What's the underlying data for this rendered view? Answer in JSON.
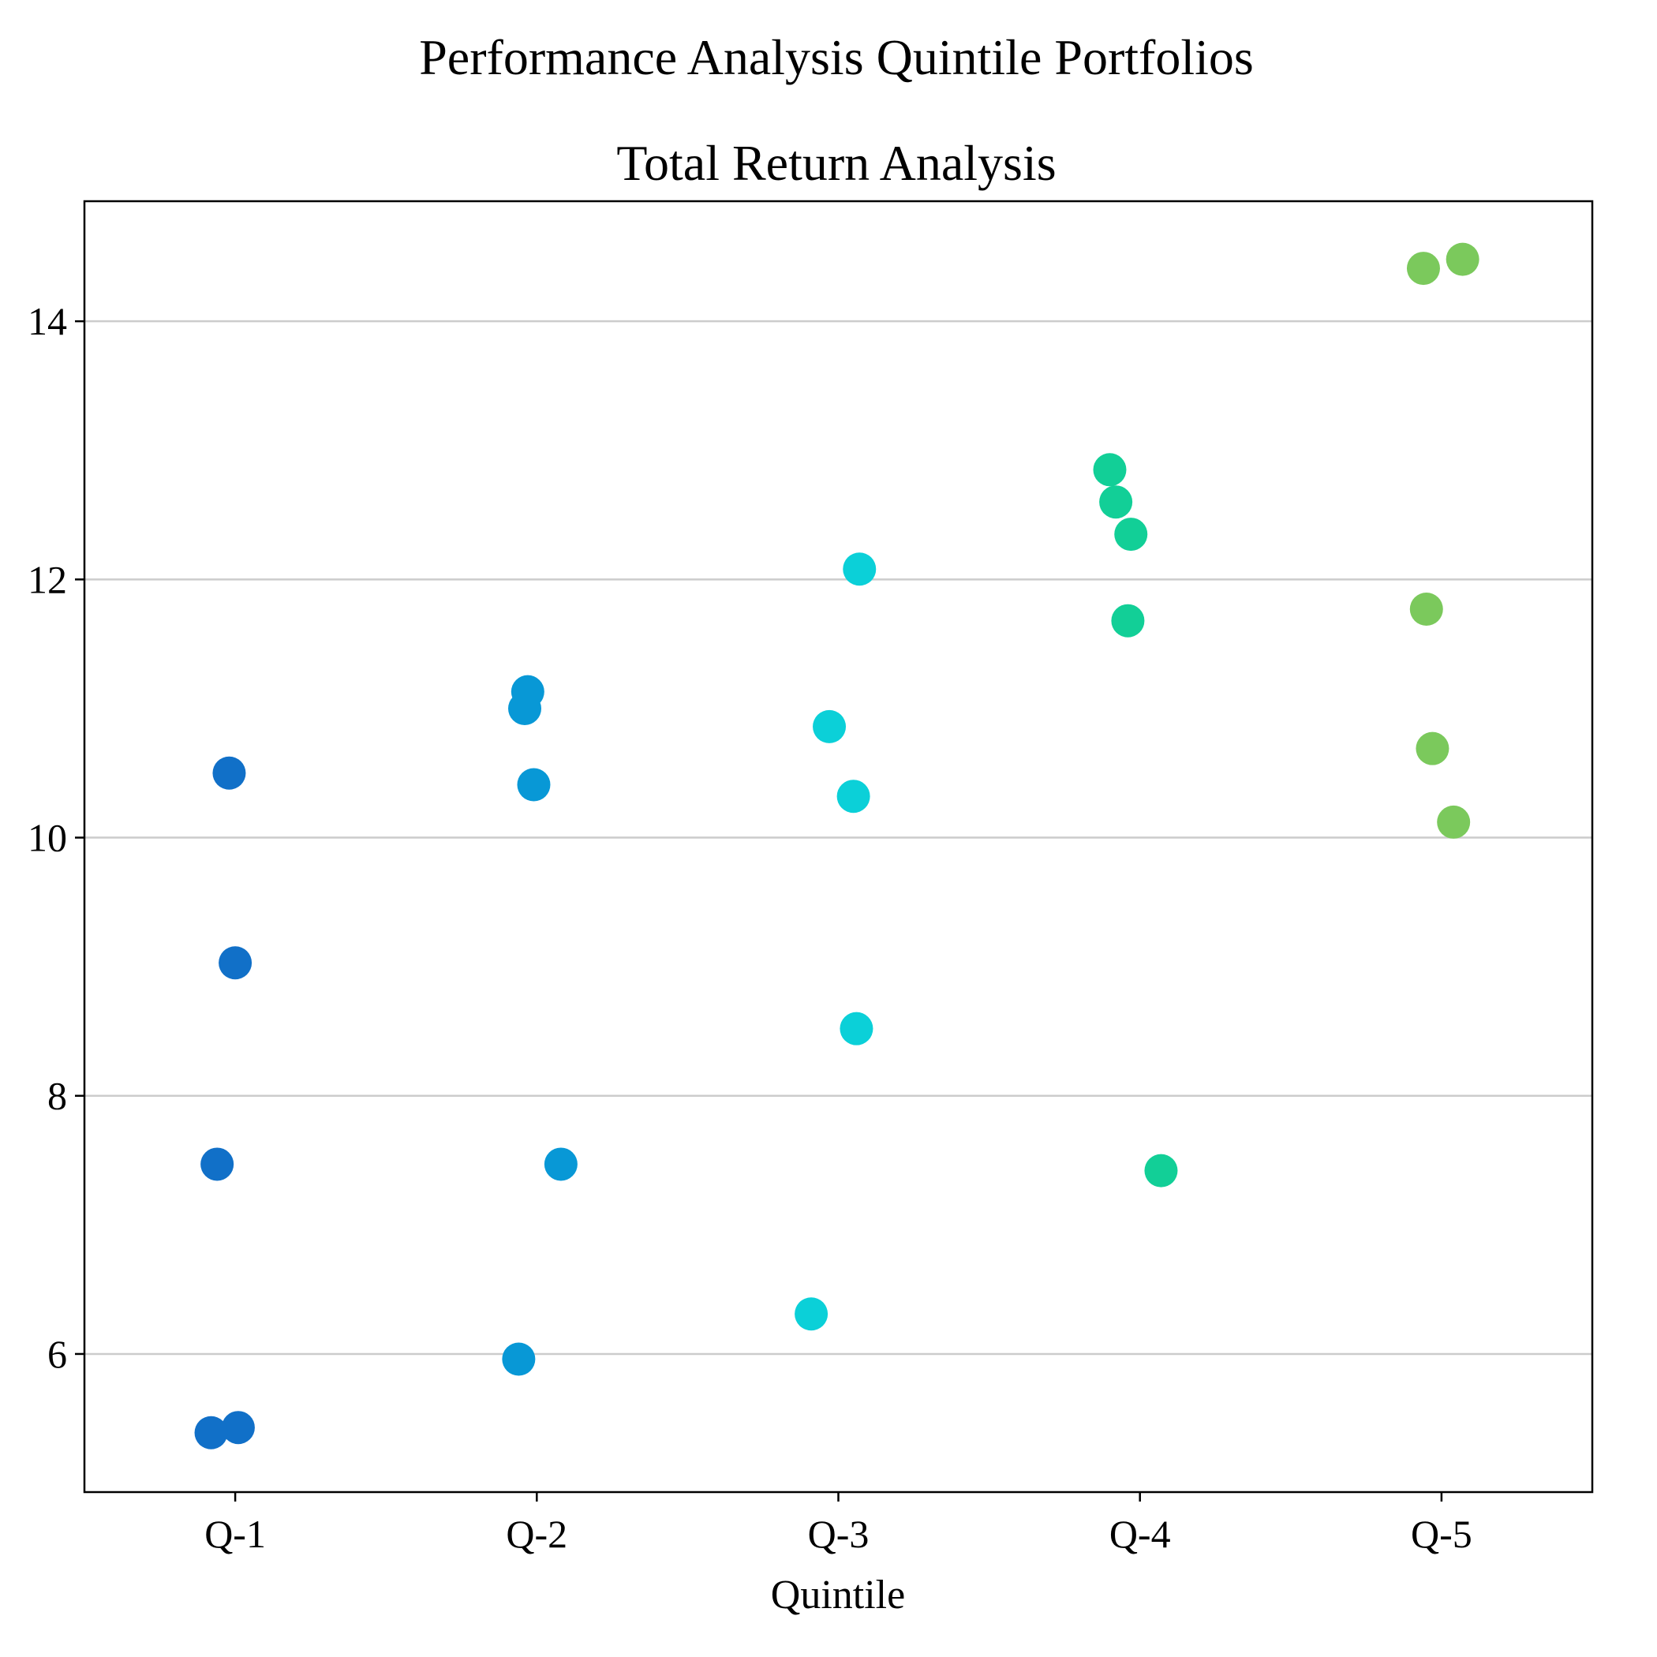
{
  "chart_data": {
    "type": "scatter",
    "title": "Performance Analysis Quintile Portfolios",
    "subtitle": "Total Return Analysis",
    "xlabel": "Quintile",
    "ylabel": "",
    "categories": [
      "Q-1",
      "Q-2",
      "Q-3",
      "Q-4",
      "Q-5"
    ],
    "ylim": [
      4.93,
      14.93
    ],
    "yticks": [
      6,
      8,
      10,
      12,
      14
    ],
    "grid": "horizontal",
    "legend": "none",
    "series": [
      {
        "category": "Q-1",
        "color": "#1170c8",
        "points": [
          {
            "x": -0.02,
            "y": 10.5
          },
          {
            "x": 0.0,
            "y": 9.03
          },
          {
            "x": -0.06,
            "y": 7.47
          },
          {
            "x": 0.01,
            "y": 5.43
          },
          {
            "x": -0.08,
            "y": 5.39
          }
        ]
      },
      {
        "category": "Q-2",
        "color": "#0898d6",
        "points": [
          {
            "x": -0.03,
            "y": 11.13
          },
          {
            "x": -0.04,
            "y": 11.0
          },
          {
            "x": -0.01,
            "y": 10.41
          },
          {
            "x": 0.08,
            "y": 7.47
          },
          {
            "x": -0.06,
            "y": 5.96
          }
        ]
      },
      {
        "category": "Q-3",
        "color": "#0bd0d8",
        "points": [
          {
            "x": 0.07,
            "y": 12.08
          },
          {
            "x": -0.03,
            "y": 10.86
          },
          {
            "x": 0.05,
            "y": 10.32
          },
          {
            "x": 0.06,
            "y": 8.52
          },
          {
            "x": -0.09,
            "y": 6.31
          }
        ]
      },
      {
        "category": "Q-4",
        "color": "#12cf97",
        "points": [
          {
            "x": -0.1,
            "y": 12.85
          },
          {
            "x": -0.08,
            "y": 12.6
          },
          {
            "x": -0.03,
            "y": 12.35
          },
          {
            "x": -0.04,
            "y": 11.68
          },
          {
            "x": 0.07,
            "y": 7.42
          }
        ]
      },
      {
        "category": "Q-5",
        "color": "#7bc95c",
        "points": [
          {
            "x": 0.07,
            "y": 14.48
          },
          {
            "x": -0.06,
            "y": 14.41
          },
          {
            "x": -0.05,
            "y": 11.77
          },
          {
            "x": -0.03,
            "y": 10.69
          },
          {
            "x": 0.04,
            "y": 10.12
          }
        ]
      }
    ]
  }
}
